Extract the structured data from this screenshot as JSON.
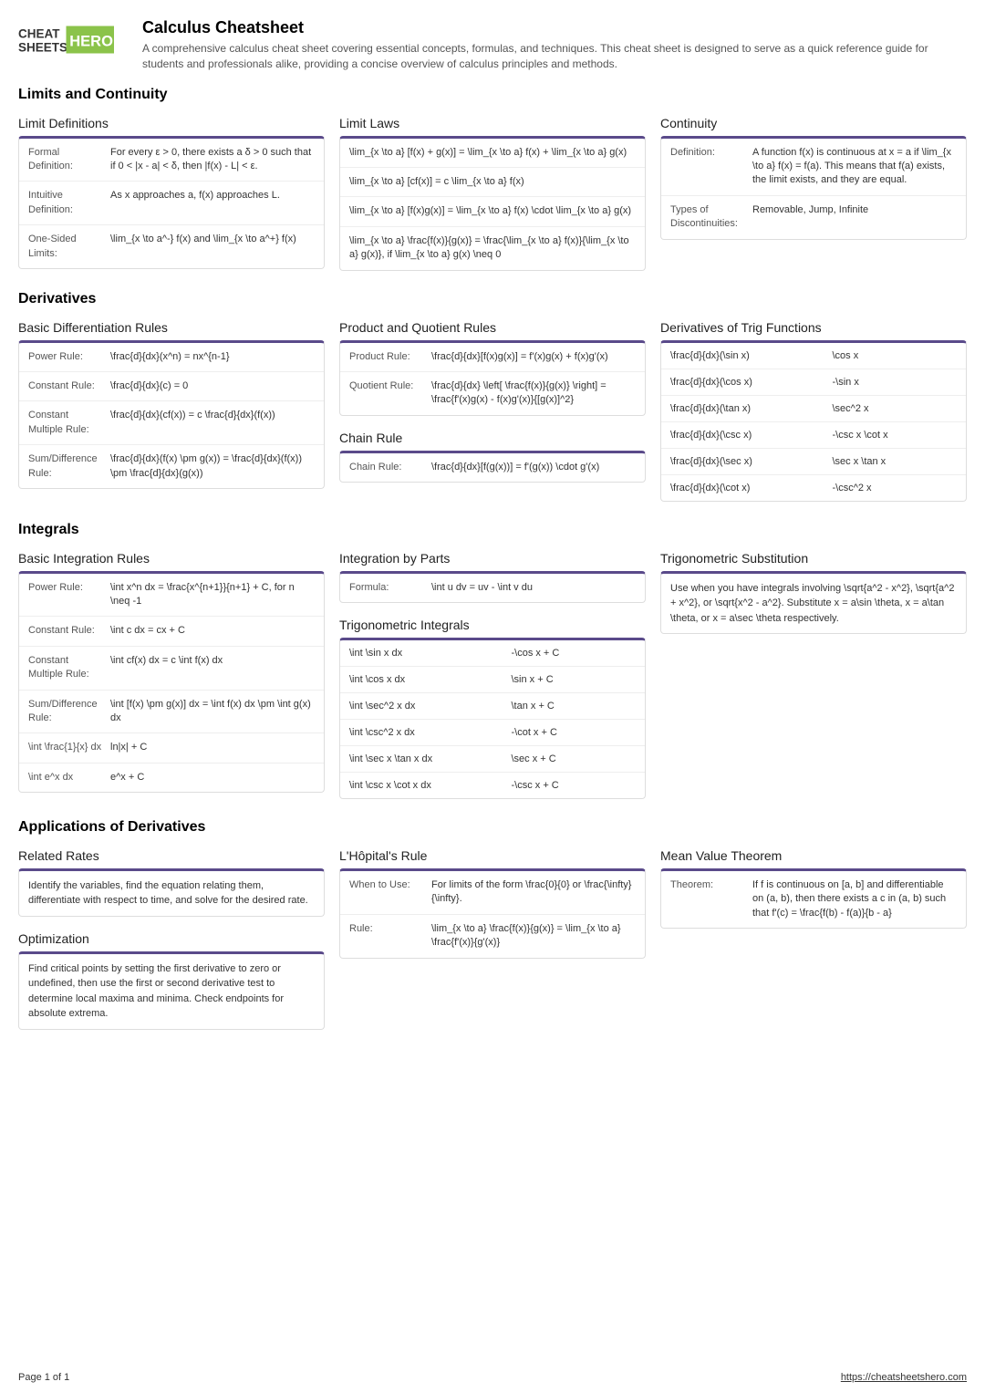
{
  "brand": {
    "line1": "CHEAT",
    "line2": "SHEETS",
    "accent": "HERO"
  },
  "title": "Calculus Cheatsheet",
  "description": "A comprehensive calculus cheat sheet covering essential concepts, formulas, and techniques. This cheat sheet is designed to serve as a quick reference guide for students and professionals alike, providing a concise overview of calculus principles and methods.",
  "s1": {
    "title": "Limits and Continuity"
  },
  "s1c1_title": "Limit Definitions",
  "s1c1": [
    {
      "label": "Formal Definition:",
      "value": "For every ε > 0, there exists a δ > 0 such that if 0 < |x - a| < δ, then |f(x) - L| < ε."
    },
    {
      "label": "Intuitive Definition:",
      "value": "As x approaches a, f(x) approaches L."
    },
    {
      "label": "One-Sided Limits:",
      "value": "\\lim_{x \\to a^-} f(x) and \\lim_{x \\to a^+} f(x)"
    }
  ],
  "s1c2_title": "Limit Laws",
  "s1c2": [
    "\\lim_{x \\to a} [f(x) + g(x)] = \\lim_{x \\to a} f(x) + \\lim_{x \\to a} g(x)",
    "\\lim_{x \\to a} [cf(x)] = c \\lim_{x \\to a} f(x)",
    "\\lim_{x \\to a} [f(x)g(x)] = \\lim_{x \\to a} f(x) \\cdot \\lim_{x \\to a} g(x)",
    "\\lim_{x \\to a} \\frac{f(x)}{g(x)} = \\frac{\\lim_{x \\to a} f(x)}{\\lim_{x \\to a} g(x)}, if \\lim_{x \\to a} g(x) \\neq 0"
  ],
  "s1c3_title": "Continuity",
  "s1c3": [
    {
      "label": "Definition:",
      "value": "A function f(x) is continuous at x = a if \\lim_{x \\to a} f(x) = f(a). This means that f(a) exists, the limit exists, and they are equal."
    },
    {
      "label": "Types of Discontinuities:",
      "value": "Removable, Jump, Infinite"
    }
  ],
  "s2": {
    "title": "Derivatives"
  },
  "s2c1_title": "Basic Differentiation Rules",
  "s2c1": [
    {
      "label": "Power Rule:",
      "value": "\\frac{d}{dx}(x^n) = nx^{n-1}"
    },
    {
      "label": "Constant Rule:",
      "value": "\\frac{d}{dx}(c) = 0"
    },
    {
      "label": "Constant Multiple Rule:",
      "value": "\\frac{d}{dx}(cf(x)) = c \\frac{d}{dx}(f(x))"
    },
    {
      "label": "Sum/Difference Rule:",
      "value": "\\frac{d}{dx}(f(x) \\pm g(x)) = \\frac{d}{dx}(f(x)) \\pm \\frac{d}{dx}(g(x))"
    }
  ],
  "s2c2a_title": "Product and Quotient Rules",
  "s2c2a": [
    {
      "label": "Product Rule:",
      "value": "\\frac{d}{dx}[f(x)g(x)] = f'(x)g(x) + f(x)g'(x)"
    },
    {
      "label": "Quotient Rule:",
      "value": "\\frac{d}{dx} \\left[ \\frac{f(x)}{g(x)} \\right] = \\frac{f'(x)g(x) - f(x)g'(x)}{[g(x)]^2}"
    }
  ],
  "s2c2b_title": "Chain Rule",
  "s2c2b": [
    {
      "label": "Chain Rule:",
      "value": "\\frac{d}{dx}[f(g(x))] = f'(g(x)) \\cdot g'(x)"
    }
  ],
  "s2c3_title": "Derivatives of Trig Functions",
  "s2c3": [
    {
      "c1": "\\frac{d}{dx}(\\sin x)",
      "c2": "\\cos x"
    },
    {
      "c1": "\\frac{d}{dx}(\\cos x)",
      "c2": "-\\sin x"
    },
    {
      "c1": "\\frac{d}{dx}(\\tan x)",
      "c2": "\\sec^2 x"
    },
    {
      "c1": "\\frac{d}{dx}(\\csc x)",
      "c2": "-\\csc x \\cot x"
    },
    {
      "c1": "\\frac{d}{dx}(\\sec x)",
      "c2": "\\sec x \\tan x"
    },
    {
      "c1": "\\frac{d}{dx}(\\cot x)",
      "c2": "-\\csc^2 x"
    }
  ],
  "s3": {
    "title": "Integrals"
  },
  "s3c1_title": "Basic Integration Rules",
  "s3c1": [
    {
      "label": "Power Rule:",
      "value": "\\int x^n dx = \\frac{x^{n+1}}{n+1} + C, for n \\neq -1"
    },
    {
      "label": "Constant Rule:",
      "value": "\\int c dx = cx + C"
    },
    {
      "label": "Constant Multiple Rule:",
      "value": "\\int cf(x) dx = c \\int f(x) dx"
    },
    {
      "label": "Sum/Difference Rule:",
      "value": "\\int [f(x) \\pm g(x)] dx = \\int f(x) dx \\pm \\int g(x) dx"
    },
    {
      "label": "\\int \\frac{1}{x} dx",
      "value": "ln|x| + C"
    },
    {
      "label": "\\int e^x dx",
      "value": "e^x + C"
    }
  ],
  "s3c2a_title": "Integration by Parts",
  "s3c2a": [
    {
      "label": "Formula:",
      "value": "\\int u dv = uv - \\int v du"
    }
  ],
  "s3c2b_title": "Trigonometric Integrals",
  "s3c2b": [
    {
      "c1": "\\int \\sin x dx",
      "c2": "-\\cos x + C"
    },
    {
      "c1": "\\int \\cos x dx",
      "c2": "\\sin x + C"
    },
    {
      "c1": "\\int \\sec^2 x dx",
      "c2": "\\tan x + C"
    },
    {
      "c1": "\\int \\csc^2 x dx",
      "c2": "-\\cot x + C"
    },
    {
      "c1": "\\int \\sec x \\tan x dx",
      "c2": "\\sec x + C"
    },
    {
      "c1": "\\int \\csc x \\cot x dx",
      "c2": "-\\csc x + C"
    }
  ],
  "s3c3_title": "Trigonometric Substitution",
  "s3c3_text": "Use when you have integrals involving \\sqrt{a^2 - x^2}, \\sqrt{a^2 + x^2}, or \\sqrt{x^2 - a^2}. Substitute x = a\\sin \\theta, x = a\\tan \\theta, or x = a\\sec \\theta respectively.",
  "s4": {
    "title": "Applications of Derivatives"
  },
  "s4c1a_title": "Related Rates",
  "s4c1a_text": "Identify the variables, find the equation relating them, differentiate with respect to time, and solve for the desired rate.",
  "s4c1b_title": "Optimization",
  "s4c1b_text": "Find critical points by setting the first derivative to zero or undefined, then use the first or second derivative test to determine local maxima and minima. Check endpoints for absolute extrema.",
  "s4c2_title": "L'Hôpital's Rule",
  "s4c2": [
    {
      "label": "When to Use:",
      "value": "For limits of the form \\frac{0}{0} or \\frac{\\infty}{\\infty}."
    },
    {
      "label": "Rule:",
      "value": "\\lim_{x \\to a} \\frac{f(x)}{g(x)} = \\lim_{x \\to a} \\frac{f'(x)}{g'(x)}"
    }
  ],
  "s4c3_title": "Mean Value Theorem",
  "s4c3": [
    {
      "label": "Theorem:",
      "value": "If f is continuous on [a, b] and differentiable on (a, b), then there exists a c in (a, b) such that f'(c) = \\frac{f(b) - f(a)}{b - a}"
    }
  ],
  "footer": {
    "page": "Page 1 of 1",
    "url": "https://cheatsheetshero.com"
  },
  "colors": {
    "accent": "#5a4a8a",
    "green": "#8bc34a",
    "border": "#dddddd",
    "row_border": "#eeeeee"
  }
}
